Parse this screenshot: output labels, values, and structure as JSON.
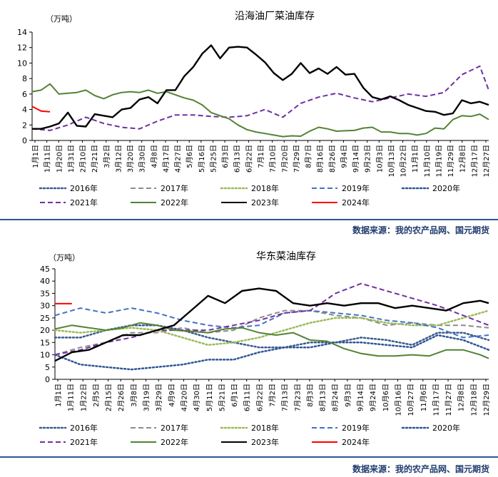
{
  "source_text": "数据来源：我的农产品网、国元期货",
  "chart_data": [
    {
      "type": "line",
      "title": "沿海油厂菜油库存",
      "unit_label": "（万吨）",
      "ylim": [
        0,
        14
      ],
      "yticks": [
        0,
        2,
        4,
        6,
        8,
        10,
        12,
        14
      ],
      "xlim": [
        1,
        52
      ],
      "xtick_labels": [
        "1月1日",
        "1月11日",
        "1月20日",
        "1月31日",
        "2月10日",
        "2月21日",
        "3月2日",
        "3月12日",
        "3月20日",
        "3月30日",
        "4月8日",
        "4月17日",
        "4月27日",
        "5月6日",
        "5月16日",
        "5月25日",
        "6月3日",
        "6月13日",
        "6月22日",
        "7月1日",
        "7月10日",
        "7月20日",
        "7月29日",
        "8月7日",
        "8月16日",
        "8月26日",
        "9月4日",
        "9月14日",
        "9月23日",
        "10月3日",
        "10月13日",
        "10月22日",
        "11月1日",
        "11月10日",
        "11月19日",
        "11月29日",
        "12月8日",
        "12月17日",
        "12月27日"
      ],
      "grid": false,
      "series": [
        {
          "name": "2021年",
          "color": "#7030a0",
          "dash": "7,4",
          "width": 2,
          "x": [
            1,
            3,
            5,
            7,
            9,
            11,
            13,
            15,
            17,
            19,
            21,
            23,
            25,
            27,
            29,
            31,
            33,
            35,
            37,
            39,
            41,
            43,
            45,
            47,
            49,
            51,
            52
          ],
          "y": [
            1.5,
            1.3,
            2.0,
            3.0,
            2.2,
            1.7,
            1.5,
            2.5,
            3.3,
            3.3,
            3.1,
            3.0,
            3.2,
            4.0,
            3.0,
            4.8,
            5.6,
            6.1,
            5.5,
            5.0,
            5.5,
            6.0,
            5.7,
            6.2,
            8.5,
            9.6,
            6.5
          ]
        },
        {
          "name": "2022年",
          "color": "#548235",
          "dash": "",
          "width": 2,
          "x": [
            1,
            2,
            3,
            4,
            5,
            6,
            7,
            8,
            9,
            10,
            11,
            12,
            13,
            14,
            15,
            16,
            17,
            18,
            19,
            20,
            21,
            22,
            23,
            24,
            25,
            26,
            27,
            28,
            29,
            30,
            31,
            32,
            33,
            34,
            35,
            36,
            37,
            38,
            39,
            40,
            41,
            42,
            43,
            44,
            45,
            46,
            47,
            48,
            49,
            50,
            51,
            52
          ],
          "y": [
            6.3,
            6.5,
            7.3,
            6.0,
            6.1,
            6.2,
            6.5,
            5.8,
            5.4,
            5.9,
            6.2,
            6.3,
            6.2,
            6.5,
            6.1,
            6.3,
            5.9,
            5.5,
            5.2,
            4.6,
            3.6,
            3.2,
            2.8,
            2.0,
            1.4,
            1.1,
            0.9,
            0.7,
            0.5,
            0.6,
            0.55,
            1.2,
            1.7,
            1.5,
            1.2,
            1.25,
            1.3,
            1.6,
            1.7,
            1.1,
            1.1,
            0.9,
            0.9,
            0.7,
            0.9,
            1.6,
            1.5,
            2.7,
            3.2,
            3.1,
            3.4,
            2.7
          ]
        },
        {
          "name": "2023年",
          "color": "#000000",
          "dash": "",
          "width": 2.4,
          "x": [
            1,
            2,
            3,
            4,
            5,
            6,
            7,
            8,
            9,
            10,
            11,
            12,
            13,
            14,
            15,
            16,
            17,
            18,
            19,
            20,
            21,
            22,
            23,
            24,
            25,
            26,
            27,
            28,
            29,
            30,
            31,
            32,
            33,
            34,
            35,
            36,
            37,
            38,
            39,
            40,
            41,
            42,
            43,
            44,
            45,
            46,
            47,
            48,
            49,
            50,
            51,
            52
          ],
          "y": [
            1.5,
            1.5,
            1.8,
            2.2,
            3.6,
            1.9,
            1.8,
            3.4,
            3.2,
            3.0,
            4.0,
            4.2,
            5.3,
            5.6,
            4.8,
            6.5,
            6.5,
            8.3,
            9.5,
            11.2,
            12.3,
            10.6,
            12.0,
            12.1,
            12.0,
            11.1,
            10.1,
            8.7,
            7.8,
            8.6,
            10.0,
            8.7,
            9.3,
            8.6,
            9.5,
            8.5,
            8.6,
            6.8,
            5.6,
            5.3,
            5.7,
            5.2,
            4.6,
            4.2,
            3.8,
            3.7,
            3.3,
            3.5,
            5.2,
            4.8,
            5.0,
            4.6
          ]
        },
        {
          "name": "2024年",
          "color": "#ff0000",
          "dash": "",
          "width": 2,
          "x": [
            1,
            2,
            3
          ],
          "y": [
            4.4,
            3.8,
            3.7
          ]
        }
      ],
      "legend": [
        {
          "label": "2016年",
          "color": "#3b5a8c",
          "dash": "2,3",
          "width": 2.5
        },
        {
          "label": "2017年",
          "color": "#8c8c8c",
          "dash": "7,4",
          "width": 2
        },
        {
          "label": "2018年",
          "color": "#9bbb59",
          "dash": "2,3",
          "width": 2.5
        },
        {
          "label": "2019年",
          "color": "#4472c4",
          "dash": "7,4",
          "width": 2
        },
        {
          "label": "2020年",
          "color": "#2f5597",
          "dash": "2,3",
          "width": 2.5
        },
        {
          "label": "2021年",
          "color": "#7030a0",
          "dash": "7,4",
          "width": 2
        },
        {
          "label": "2022年",
          "color": "#548235",
          "dash": "",
          "width": 2
        },
        {
          "label": "2023年",
          "color": "#000000",
          "dash": "",
          "width": 2
        },
        {
          "label": "2024年",
          "color": "#ff0000",
          "dash": "",
          "width": 2
        }
      ]
    },
    {
      "type": "line",
      "title": "华东菜油库存",
      "unit_label": "（万吨）",
      "ylim": [
        0,
        45
      ],
      "yticks": [
        0,
        5,
        10,
        15,
        20,
        25,
        30,
        35,
        40,
        45
      ],
      "xlim": [
        1,
        52
      ],
      "xtick_labels": [
        "1月1日",
        "1月11日",
        "1月22日",
        "2月5日",
        "2月15日",
        "2月26日",
        "3月8日",
        "3月19日",
        "3月29日",
        "4月9日",
        "4月20日",
        "4月30日",
        "5月11日",
        "5月21日",
        "6月1日",
        "6月11日",
        "6月22日",
        "7月2日",
        "7月13日",
        "7月23日",
        "8月3日",
        "8月13日",
        "8月24日",
        "9月3日",
        "9月14日",
        "9月24日",
        "10月6日",
        "10月16日",
        "10月27日",
        "11月6日",
        "11月17日",
        "11月27日",
        "12月8日",
        "12月18日",
        "12月29日"
      ],
      "grid": false,
      "series": [
        {
          "name": "2016年",
          "color": "#3b5a8c",
          "dash": "2,3",
          "width": 2.5,
          "x": [
            1,
            4,
            7,
            10,
            13,
            16,
            19,
            22,
            25,
            28,
            31,
            34,
            37,
            40,
            43,
            46,
            49,
            52
          ],
          "y": [
            17,
            17,
            20,
            22,
            22,
            20,
            17,
            15,
            13,
            13,
            15,
            15,
            17,
            16,
            14,
            19,
            19,
            16
          ]
        },
        {
          "name": "2017年",
          "color": "#8c8c8c",
          "dash": "7,4",
          "width": 2,
          "x": [
            1,
            4,
            7,
            10,
            13,
            16,
            19,
            22,
            25,
            28,
            31,
            34,
            37,
            40,
            43,
            46,
            49,
            52
          ],
          "y": [
            10,
            13,
            15,
            19,
            19,
            21,
            19,
            20,
            25,
            28,
            28,
            26,
            25,
            22,
            23,
            22,
            22,
            21
          ]
        },
        {
          "name": "2018年",
          "color": "#9bbb59",
          "dash": "2,3",
          "width": 2.5,
          "x": [
            1,
            4,
            7,
            10,
            13,
            16,
            19,
            22,
            25,
            28,
            31,
            34,
            37,
            40,
            43,
            46,
            49,
            52
          ],
          "y": [
            20,
            19,
            20,
            21,
            20,
            17,
            14,
            15,
            17,
            20,
            23,
            25,
            25,
            23,
            22,
            22,
            25,
            28
          ]
        },
        {
          "name": "2019年",
          "color": "#4472c4",
          "dash": "7,4",
          "width": 2,
          "x": [
            1,
            4,
            7,
            10,
            13,
            16,
            19,
            22,
            25,
            28,
            31,
            34,
            37,
            40,
            43,
            46,
            49,
            52
          ],
          "y": [
            26,
            29,
            27,
            29,
            27,
            24,
            22,
            21,
            22,
            27,
            28,
            27,
            26,
            24,
            23,
            21,
            17,
            18
          ]
        },
        {
          "name": "2020年",
          "color": "#2f5597",
          "dash": "2,3",
          "width": 2.5,
          "x": [
            1,
            4,
            7,
            10,
            13,
            16,
            19,
            22,
            25,
            28,
            31,
            34,
            37,
            40,
            43,
            46,
            49,
            52
          ],
          "y": [
            10,
            6,
            5,
            4,
            5,
            6,
            8,
            8,
            11,
            13,
            13,
            15,
            15,
            14,
            13,
            18,
            16,
            12
          ]
        },
        {
          "name": "2021年",
          "color": "#7030a0",
          "dash": "7,4",
          "width": 2,
          "x": [
            1,
            4,
            7,
            10,
            13,
            16,
            19,
            22,
            25,
            28,
            31,
            34,
            37,
            40,
            43,
            46,
            49,
            52
          ],
          "y": [
            10,
            12,
            15,
            17,
            20,
            20,
            20,
            22,
            24,
            27,
            28,
            35,
            39,
            36,
            33,
            30,
            26,
            22
          ]
        },
        {
          "name": "2022年",
          "color": "#548235",
          "dash": "",
          "width": 2,
          "x": [
            1,
            3,
            5,
            7,
            9,
            11,
            13,
            15,
            17,
            19,
            21,
            23,
            25,
            27,
            29,
            31,
            33,
            35,
            37,
            39,
            41,
            43,
            45,
            47,
            49,
            51,
            52
          ],
          "y": [
            20.5,
            22,
            21,
            20,
            21,
            23,
            22,
            20,
            19.5,
            19,
            20.5,
            21,
            19,
            18,
            19,
            16,
            15.5,
            12.5,
            10.5,
            9.5,
            9.5,
            10,
            9.5,
            12,
            12,
            10,
            8.5
          ]
        },
        {
          "name": "2023年",
          "color": "#000000",
          "dash": "",
          "width": 2.4,
          "x": [
            1,
            3,
            5,
            7,
            9,
            11,
            13,
            15,
            17,
            19,
            21,
            23,
            25,
            27,
            29,
            31,
            33,
            35,
            37,
            39,
            41,
            43,
            45,
            47,
            49,
            51,
            52
          ],
          "y": [
            7.5,
            11,
            12,
            15,
            18,
            18,
            20,
            22,
            28,
            34,
            31,
            36,
            37,
            36,
            31,
            30,
            31,
            30,
            31,
            31,
            29,
            30,
            29,
            28,
            31,
            32,
            31
          ]
        },
        {
          "name": "2024年",
          "color": "#ff0000",
          "dash": "",
          "width": 2,
          "x": [
            1,
            2,
            3
          ],
          "y": [
            30.8,
            30.8,
            30.8
          ]
        }
      ],
      "legend": [
        {
          "label": "2016年",
          "color": "#3b5a8c",
          "dash": "2,3",
          "width": 2.5
        },
        {
          "label": "2017年",
          "color": "#8c8c8c",
          "dash": "7,4",
          "width": 2
        },
        {
          "label": "2018年",
          "color": "#9bbb59",
          "dash": "2,3",
          "width": 2.5
        },
        {
          "label": "2019年",
          "color": "#4472c4",
          "dash": "7,4",
          "width": 2
        },
        {
          "label": "2020年",
          "color": "#2f5597",
          "dash": "2,3",
          "width": 2.5
        },
        {
          "label": "2021年",
          "color": "#7030a0",
          "dash": "7,4",
          "width": 2
        },
        {
          "label": "2022年",
          "color": "#548235",
          "dash": "",
          "width": 2
        },
        {
          "label": "2023年",
          "color": "#000000",
          "dash": "",
          "width": 2
        },
        {
          "label": "2024年",
          "color": "#ff0000",
          "dash": "",
          "width": 2
        }
      ]
    }
  ]
}
